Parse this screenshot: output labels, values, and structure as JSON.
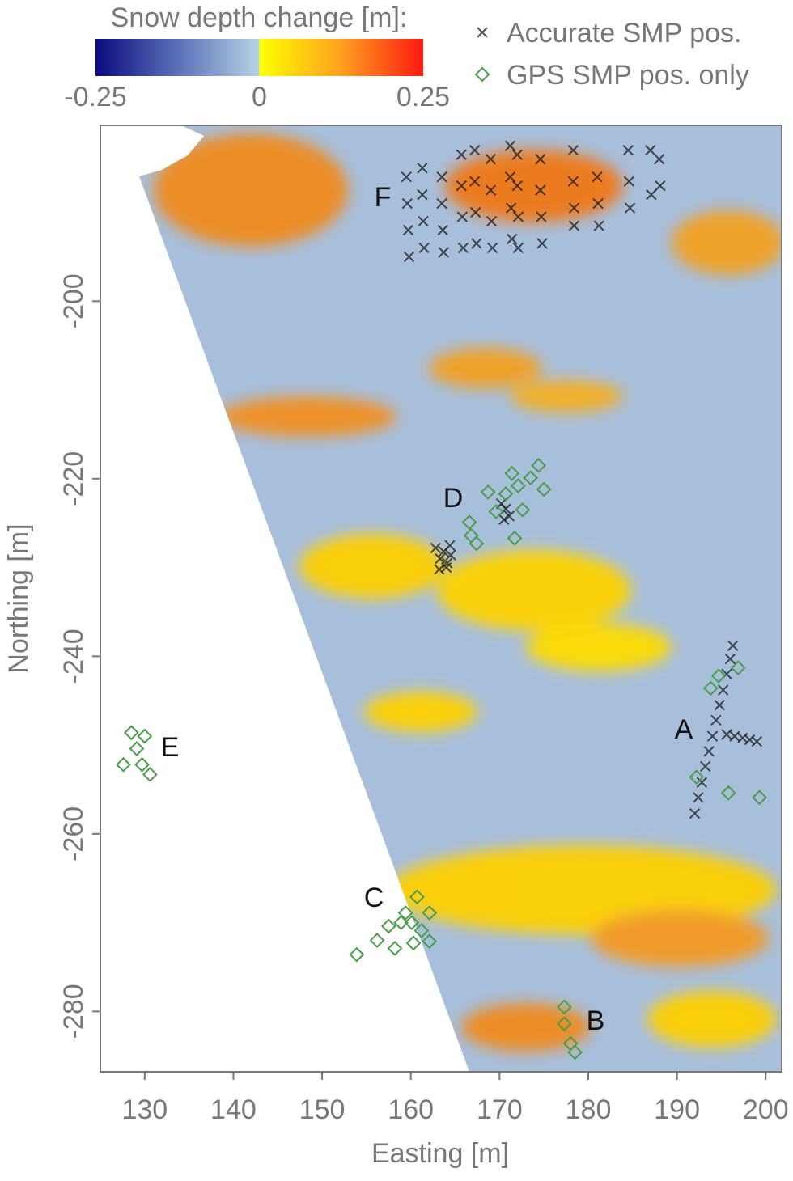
{
  "chart_data": {
    "type": "scatter",
    "xlabel": "Easting [m]",
    "ylabel": "Northing [m]",
    "xlim": [
      125,
      201.8
    ],
    "ylim": [
      -286.8,
      -180.2
    ],
    "xticks": [
      130,
      140,
      150,
      160,
      170,
      180,
      190,
      200
    ],
    "yticks": [
      -200,
      -220,
      -240,
      -260,
      -280
    ],
    "colorbar": {
      "title": "Snow depth change [m]:",
      "lim": [
        -0.25,
        0.25
      ],
      "ticks": [
        -0.25,
        0,
        0.25
      ]
    },
    "annotations": [
      "A",
      "B",
      "C",
      "D",
      "E",
      "F"
    ],
    "series": [
      {
        "name": "Accurate SMP pos.",
        "color": "#1a1a1a",
        "marker": "x",
        "x": [
          159.5,
          159.6,
          159.7,
          159.8,
          161.3,
          161.3,
          161.4,
          161.5,
          163.5,
          163.5,
          163.6,
          163.7,
          165.7,
          165.7,
          165.8,
          165.9,
          167.2,
          167.2,
          167.3,
          167.4,
          169,
          169,
          169.1,
          169.2,
          171.2,
          171.2,
          171.3,
          171.4,
          172,
          172,
          172.1,
          172.1,
          174.6,
          174.6,
          174.7,
          174.8,
          178.3,
          178.3,
          178.4,
          178.4,
          181,
          181.1,
          181.2,
          184.5,
          184.6,
          184.7,
          187,
          187.1,
          188,
          188.1,
          162.8,
          163.3,
          163.7,
          164.1,
          164.5,
          163.2,
          164.0,
          164.4,
          170.2,
          170.7,
          171.1,
          170.5,
          192.0,
          192.4,
          192.8,
          193.2,
          193.6,
          194.0,
          194.4,
          194.8,
          195.2,
          195.6,
          196.0,
          196.3,
          195.6,
          196.5,
          197.4,
          198.2,
          199.0
        ],
        "values": [
          -186,
          -189,
          -192,
          -195,
          -185,
          -188,
          -191,
          -194,
          -186,
          -189,
          -192,
          -194.5,
          -183.5,
          -187,
          -190.5,
          -194,
          -183,
          -186.5,
          -190,
          -193.5,
          -184,
          -187.5,
          -191,
          -194,
          -182.5,
          -186,
          -189.5,
          -193,
          -183.5,
          -187,
          -190.5,
          -194,
          -184,
          -187.5,
          -190.5,
          -193.5,
          -183,
          -186.5,
          -189.5,
          -191.5,
          -186,
          -189,
          -191.5,
          -183,
          -186.5,
          -189.5,
          -183,
          -188,
          -184,
          -187,
          -227.8,
          -229.0,
          -228.2,
          -229.5,
          -228.6,
          -230.2,
          -230.0,
          -227.5,
          -222.8,
          -223.4,
          -224.2,
          -224.6,
          -257.7,
          -255.9,
          -254.2,
          -252.4,
          -250.7,
          -249.0,
          -247.2,
          -245.5,
          -243.8,
          -242.0,
          -240.3,
          -238.8,
          -248.8,
          -249.0,
          -249.2,
          -249.4,
          -249.6
        ]
      },
      {
        "name": "GPS SMP pos. only",
        "color": "#4a9e4a",
        "marker": "diamond",
        "x": [
          128.5,
          129.1,
          130.0,
          127.6,
          129.7,
          130.6,
          153.9,
          156.2,
          158.2,
          157.5,
          158.9,
          159.4,
          160.3,
          160.7,
          162.1,
          162.1,
          160.1,
          161.2,
          177.3,
          177.3,
          178.0,
          178.5,
          168.7,
          166.6,
          166.8,
          167.4,
          170.7,
          172.1,
          173.5,
          174.4,
          175.0,
          172.6,
          171.7,
          169.6,
          171.4,
          193.8,
          194.7,
          195.8,
          199.3,
          196.9,
          192.2
        ],
        "values": [
          -248.6,
          -250.4,
          -249.0,
          -252.2,
          -252.2,
          -253.3,
          -273.6,
          -272.0,
          -272.9,
          -270.4,
          -270.0,
          -268.9,
          -272.3,
          -267.1,
          -268.9,
          -272.1,
          -270.0,
          -270.9,
          -279.5,
          -281.4,
          -283.6,
          -284.6,
          -221.5,
          -224.9,
          -226.4,
          -227.3,
          -221.7,
          -220.8,
          -219.9,
          -218.5,
          -221.2,
          -223.5,
          -226.7,
          -223.7,
          -219.4,
          -243.6,
          -242.2,
          -255.4,
          -255.9,
          -241.3,
          -253.6
        ]
      }
    ]
  }
}
